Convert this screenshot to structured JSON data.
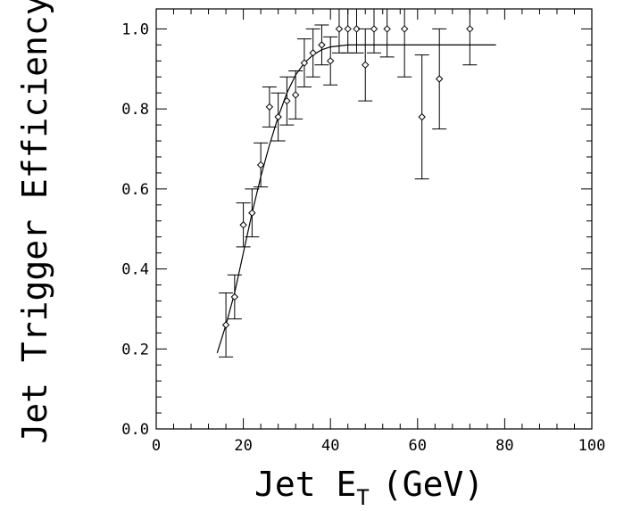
{
  "chart_data": {
    "type": "scatter",
    "title": "",
    "xlabel": "Jet E",
    "xlabel_subscript": "T",
    "xlabel_unit": "(GeV)",
    "ylabel": "Jet Trigger Efficiency",
    "xlim": [
      0,
      100
    ],
    "ylim": [
      0,
      1.05
    ],
    "x_ticks": [
      0,
      20,
      40,
      60,
      80,
      100
    ],
    "x_tick_labels": [
      "0",
      "20",
      "40",
      "60",
      "80",
      "100"
    ],
    "y_ticks": [
      0.0,
      0.2,
      0.4,
      0.6,
      0.8,
      1.0
    ],
    "y_tick_labels": [
      "0.0",
      "0.2",
      "0.4",
      "0.6",
      "0.8",
      "1.0"
    ],
    "grid": false,
    "series": [
      {
        "type": "errorbar",
        "points": [
          {
            "x": 16,
            "y": 0.26,
            "err": 0.08
          },
          {
            "x": 18,
            "y": 0.33,
            "err": 0.055
          },
          {
            "x": 20,
            "y": 0.51,
            "err": 0.055
          },
          {
            "x": 22,
            "y": 0.54,
            "err": 0.06
          },
          {
            "x": 24,
            "y": 0.66,
            "err": 0.055
          },
          {
            "x": 26,
            "y": 0.805,
            "err": 0.05
          },
          {
            "x": 28,
            "y": 0.78,
            "err": 0.06
          },
          {
            "x": 30,
            "y": 0.82,
            "err": 0.06
          },
          {
            "x": 32,
            "y": 0.835,
            "err": 0.06
          },
          {
            "x": 34,
            "y": 0.915,
            "err": 0.06
          },
          {
            "x": 36,
            "y": 0.94,
            "err": 0.06
          },
          {
            "x": 38,
            "y": 0.96,
            "err": 0.05
          },
          {
            "x": 40,
            "y": 0.92,
            "err": 0.06
          },
          {
            "x": 42,
            "y": 1.0,
            "err": 0.06
          },
          {
            "x": 44,
            "y": 1.0,
            "err": 0.06
          },
          {
            "x": 46,
            "y": 1.0,
            "err": 0.06
          },
          {
            "x": 48,
            "y": 0.91,
            "err": 0.09
          },
          {
            "x": 50,
            "y": 1.0,
            "err": 0.06
          },
          {
            "x": 53,
            "y": 1.0,
            "err": 0.07
          },
          {
            "x": 57,
            "y": 1.0,
            "err": 0.12
          },
          {
            "x": 61,
            "y": 0.78,
            "err": 0.155
          },
          {
            "x": 65,
            "y": 0.875,
            "err": 0.125
          },
          {
            "x": 72,
            "y": 1.0,
            "err": 0.09
          }
        ]
      },
      {
        "type": "line",
        "x": [
          14,
          16,
          18,
          20,
          22,
          24,
          26,
          28,
          30,
          32,
          34,
          36,
          38,
          40,
          44,
          50,
          60,
          70,
          78
        ],
        "y": [
          0.19,
          0.26,
          0.34,
          0.44,
          0.54,
          0.63,
          0.71,
          0.78,
          0.84,
          0.885,
          0.915,
          0.935,
          0.948,
          0.955,
          0.96,
          0.96,
          0.96,
          0.96,
          0.96
        ]
      }
    ]
  }
}
